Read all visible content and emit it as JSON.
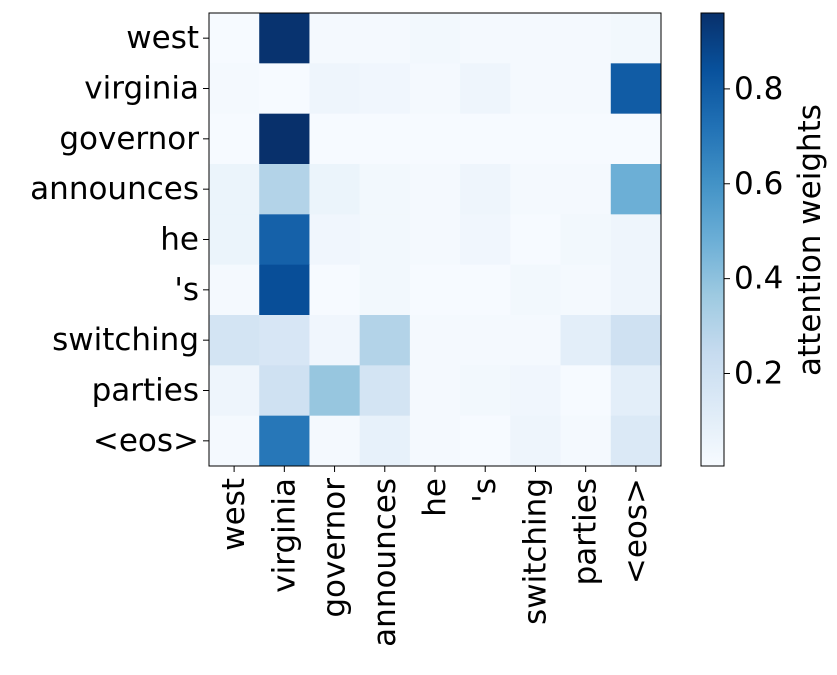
{
  "chart_data": {
    "type": "heatmap",
    "title": "",
    "xlabel": "",
    "ylabel": "",
    "x_categories": [
      "west",
      "virginia",
      "governor",
      "announces",
      "he",
      "'s",
      "switching",
      "parties",
      "<eos>"
    ],
    "y_categories": [
      "west",
      "virginia",
      "governor",
      "announces",
      "he",
      "'s",
      "switching",
      "parties",
      "<eos>"
    ],
    "values": [
      [
        0.01,
        0.95,
        0.02,
        0.02,
        0.03,
        0.02,
        0.02,
        0.02,
        0.03
      ],
      [
        0.02,
        0.01,
        0.05,
        0.04,
        0.02,
        0.05,
        0.02,
        0.02,
        0.8
      ],
      [
        0.01,
        0.96,
        0.01,
        0.01,
        0.01,
        0.01,
        0.01,
        0.01,
        0.01
      ],
      [
        0.06,
        0.3,
        0.06,
        0.03,
        0.02,
        0.05,
        0.02,
        0.02,
        0.48
      ],
      [
        0.06,
        0.78,
        0.04,
        0.03,
        0.02,
        0.04,
        0.01,
        0.03,
        0.05
      ],
      [
        0.02,
        0.85,
        0.01,
        0.03,
        0.01,
        0.01,
        0.03,
        0.02,
        0.05
      ],
      [
        0.18,
        0.16,
        0.04,
        0.3,
        0.02,
        0.02,
        0.02,
        0.1,
        0.2
      ],
      [
        0.05,
        0.2,
        0.38,
        0.18,
        0.02,
        0.03,
        0.04,
        0.01,
        0.1
      ],
      [
        0.02,
        0.7,
        0.02,
        0.08,
        0.02,
        0.01,
        0.05,
        0.02,
        0.14
      ]
    ],
    "colormap": "Blues",
    "colorbar": {
      "label": "attention weights",
      "range": [
        0.005,
        0.96
      ],
      "ticks": [
        0.2,
        0.4,
        0.6,
        0.8
      ],
      "tick_labels": [
        "0.2",
        "0.4",
        "0.6",
        "0.8"
      ]
    },
    "grid": false,
    "legend": "none"
  }
}
